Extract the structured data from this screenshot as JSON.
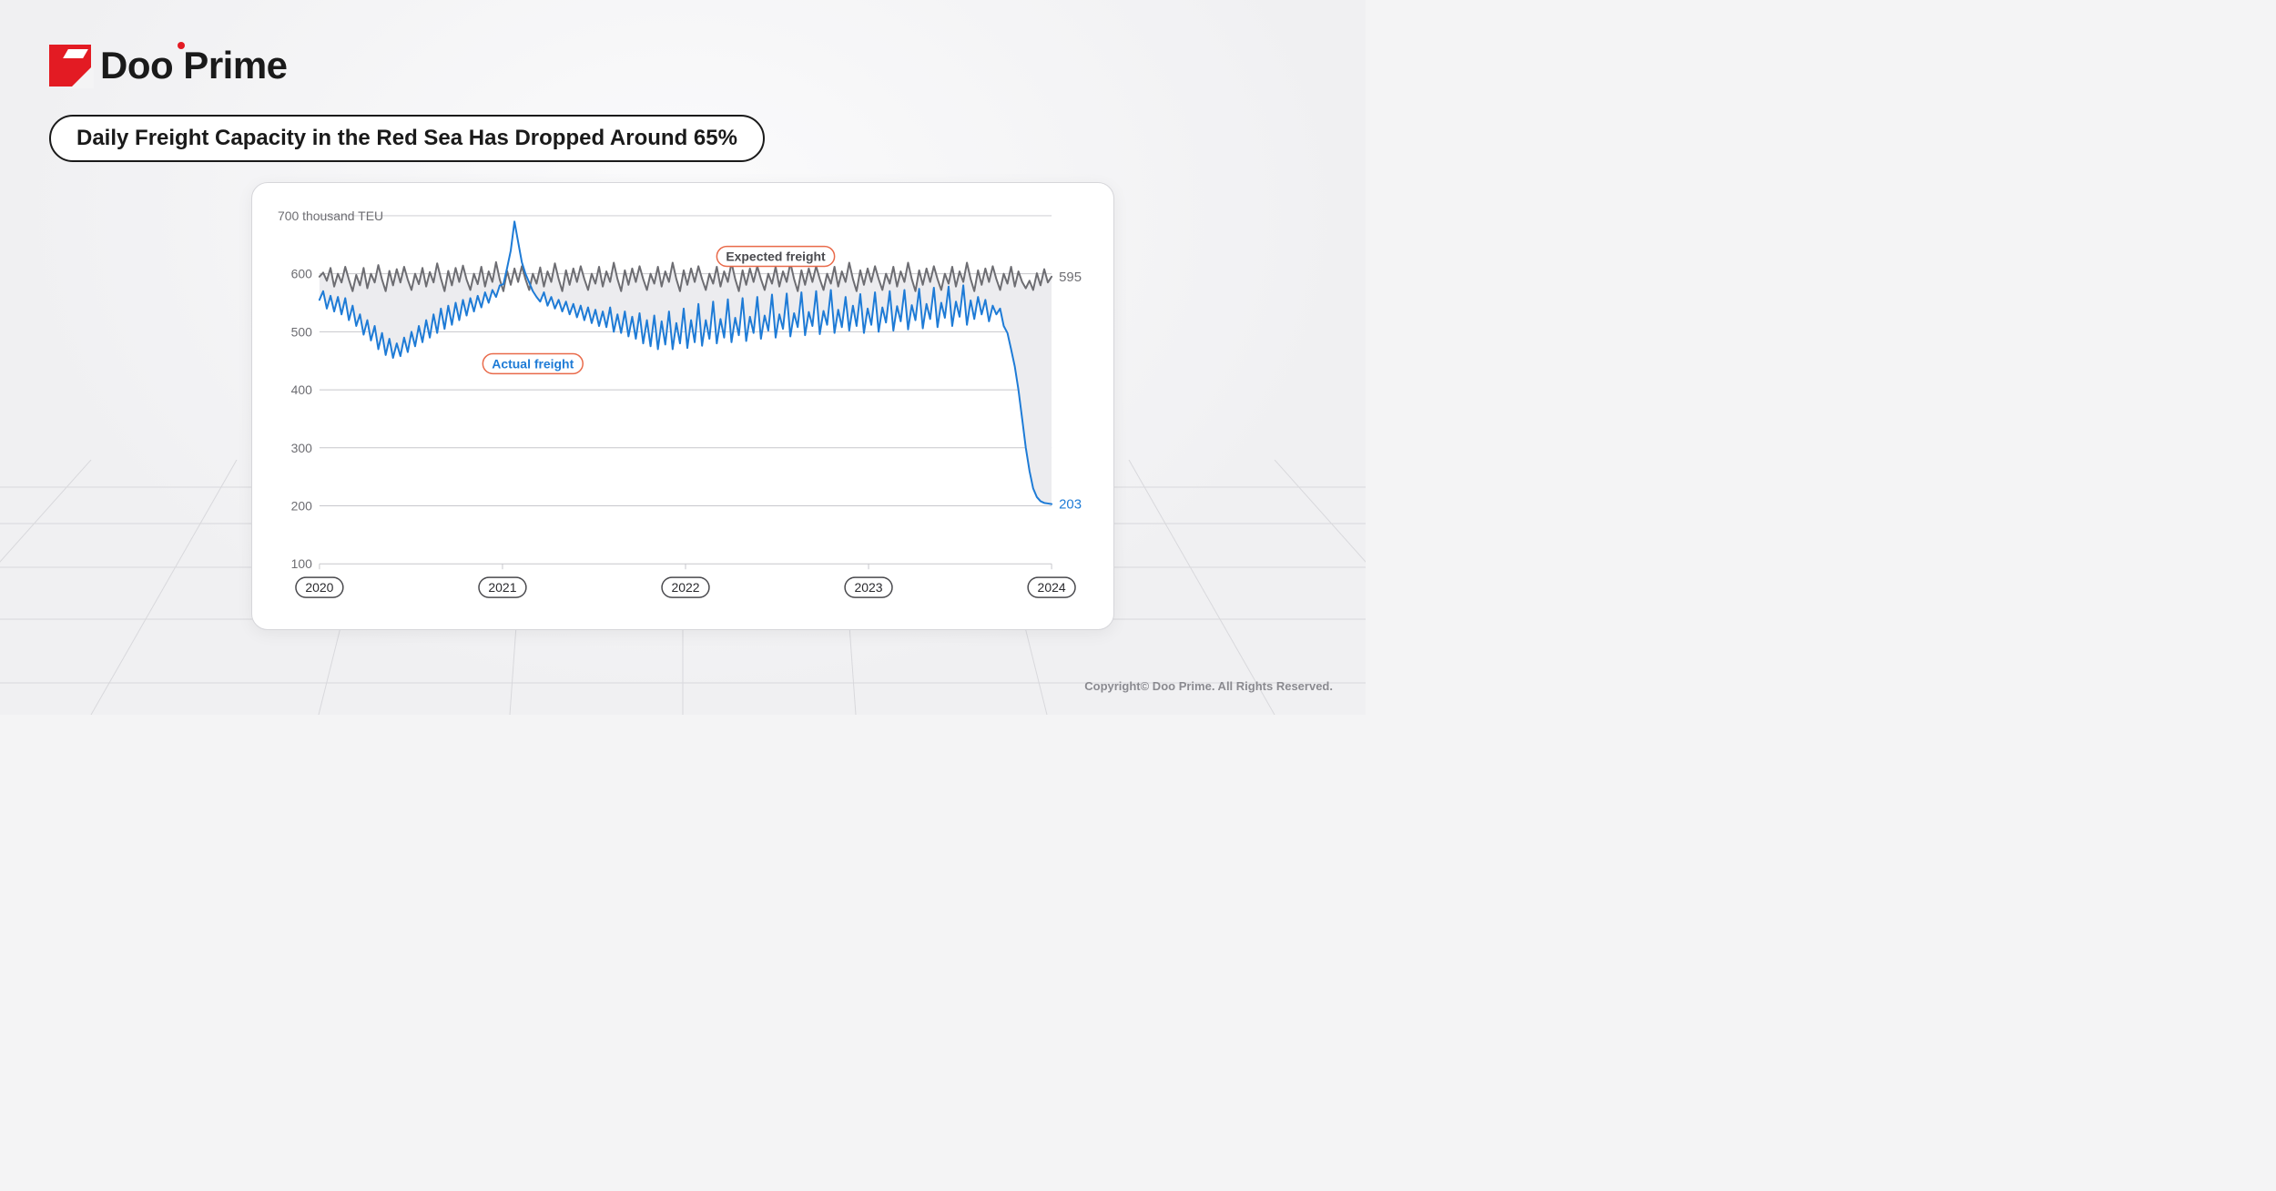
{
  "brand": {
    "name": "Doo Prime",
    "mark_color": "#e31b23",
    "text_color": "#1a1a1a"
  },
  "headline": "Daily Freight Capacity in the Red Sea Has Dropped Around 65%",
  "copyright": "Copyright© Doo Prime. All Rights Reserved.",
  "chart": {
    "type": "line",
    "y_axis": {
      "unit_label": "700 thousand TEU",
      "ticks": [
        100,
        200,
        300,
        400,
        500,
        600,
        700
      ],
      "ylim": [
        100,
        700
      ],
      "tick_fontsize": 14,
      "tick_color": "#6d6d72",
      "grid_color": "#c7c7cc"
    },
    "x_axis": {
      "tick_labels": [
        "2020",
        "2021",
        "2022",
        "2023",
        "2024"
      ],
      "pill_border_color": "#4a4a4e",
      "pill_text_color": "#2a2a2e",
      "pill_fontsize": 14
    },
    "end_labels": {
      "expected": {
        "value": 595,
        "color": "#6d6d72"
      },
      "actual": {
        "value": 203,
        "color": "#1e7bd6"
      }
    },
    "series_labels": {
      "expected": {
        "text": "Expected freight",
        "text_color": "#4a4a4e",
        "pill_border_color": "#e96a4a"
      },
      "actual": {
        "text": "Actual freight",
        "text_color": "#1e7bd6",
        "pill_border_color": "#e96a4a"
      }
    },
    "colors": {
      "expected_line": "#6d6d72",
      "actual_line": "#1e7bd6",
      "gap_fill": "#ececef",
      "background": "#ffffff",
      "line_width": 2
    },
    "series": {
      "expected": [
        595,
        602,
        588,
        610,
        578,
        600,
        585,
        612,
        590,
        570,
        598,
        580,
        610,
        575,
        600,
        585,
        615,
        590,
        570,
        605,
        580,
        608,
        585,
        612,
        590,
        572,
        600,
        582,
        610,
        578,
        603,
        585,
        618,
        592,
        570,
        605,
        580,
        610,
        586,
        614,
        590,
        572,
        600,
        582,
        612,
        578,
        604,
        586,
        620,
        590,
        570,
        605,
        581,
        609,
        586,
        613,
        591,
        572,
        600,
        583,
        611,
        578,
        604,
        586,
        618,
        591,
        570,
        606,
        581,
        609,
        586,
        613,
        591,
        572,
        600,
        583,
        612,
        578,
        604,
        586,
        619,
        591,
        570,
        606,
        581,
        609,
        586,
        613,
        591,
        572,
        600,
        583,
        612,
        578,
        604,
        586,
        619,
        591,
        570,
        606,
        581,
        609,
        586,
        613,
        591,
        572,
        600,
        583,
        612,
        578,
        604,
        586,
        619,
        591,
        570,
        606,
        581,
        609,
        586,
        613,
        591,
        572,
        600,
        583,
        612,
        578,
        604,
        586,
        619,
        591,
        570,
        606,
        581,
        609,
        586,
        613,
        591,
        572,
        600,
        583,
        612,
        578,
        604,
        586,
        619,
        591,
        570,
        606,
        581,
        609,
        586,
        613,
        591,
        572,
        600,
        583,
        612,
        578,
        604,
        586,
        619,
        591,
        570,
        606,
        581,
        609,
        586,
        613,
        591,
        572,
        600,
        583,
        612,
        578,
        604,
        586,
        619,
        591,
        570,
        606,
        581,
        609,
        586,
        613,
        591,
        572,
        600,
        583,
        612,
        578,
        604,
        586,
        575,
        588,
        572,
        601,
        580,
        608,
        585,
        595
      ],
      "actual": [
        555,
        570,
        540,
        562,
        535,
        560,
        530,
        558,
        520,
        545,
        510,
        530,
        495,
        520,
        485,
        510,
        470,
        498,
        460,
        488,
        455,
        480,
        458,
        490,
        465,
        500,
        475,
        510,
        482,
        520,
        490,
        530,
        498,
        540,
        505,
        545,
        512,
        550,
        520,
        555,
        528,
        558,
        535,
        562,
        542,
        568,
        550,
        572,
        560,
        580,
        582,
        610,
        640,
        690,
        655,
        620,
        600,
        585,
        570,
        560,
        552,
        568,
        545,
        560,
        540,
        555,
        535,
        552,
        530,
        548,
        525,
        545,
        520,
        542,
        515,
        538,
        510,
        535,
        508,
        542,
        500,
        530,
        498,
        535,
        492,
        526,
        488,
        532,
        480,
        520,
        475,
        528,
        470,
        518,
        478,
        535,
        470,
        515,
        480,
        540,
        472,
        520,
        482,
        548,
        476,
        520,
        488,
        552,
        480,
        522,
        490,
        556,
        482,
        524,
        494,
        558,
        484,
        526,
        498,
        560,
        488,
        528,
        502,
        564,
        490,
        530,
        505,
        566,
        492,
        532,
        508,
        568,
        494,
        534,
        510,
        570,
        496,
        536,
        512,
        572,
        498,
        538,
        508,
        560,
        502,
        545,
        510,
        565,
        498,
        540,
        512,
        568,
        500,
        542,
        516,
        570,
        502,
        544,
        518,
        572,
        504,
        546,
        520,
        574,
        506,
        548,
        522,
        576,
        508,
        550,
        524,
        578,
        510,
        552,
        526,
        580,
        512,
        554,
        522,
        560,
        530,
        555,
        518,
        545,
        530,
        540,
        510,
        498,
        470,
        440,
        400,
        350,
        300,
        260,
        230,
        215,
        208,
        205,
        204,
        203
      ]
    }
  }
}
